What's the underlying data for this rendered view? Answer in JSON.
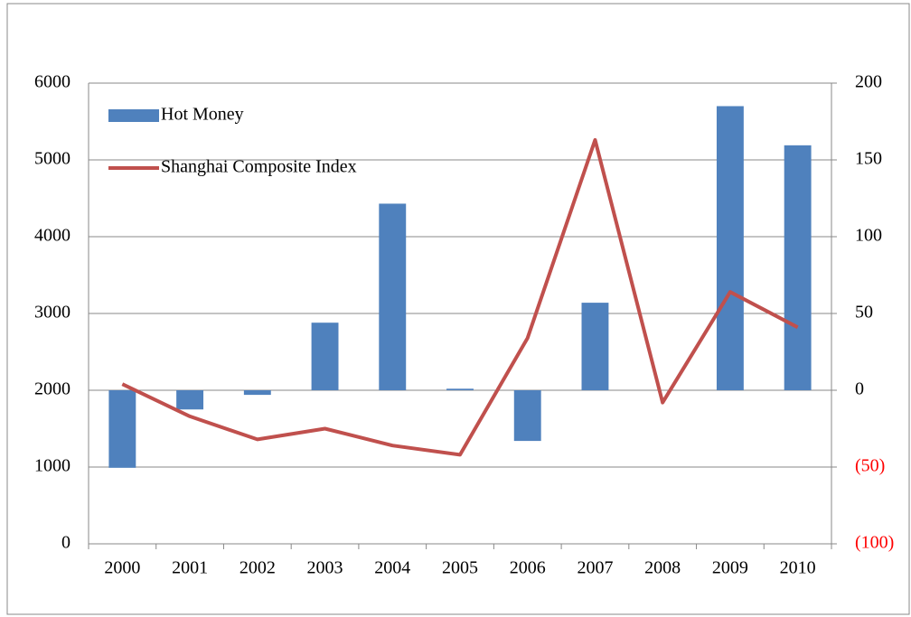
{
  "chart_data": {
    "type": "bar_line",
    "categories": [
      "2000",
      "2001",
      "2002",
      "2003",
      "2004",
      "2005",
      "2006",
      "2007",
      "2008",
      "2009",
      "2010"
    ],
    "series": [
      {
        "name": "Hot Money",
        "type": "bar",
        "color": "#4f81bd",
        "values": [
          990,
          1750,
          1940,
          2880,
          4430,
          2020,
          1340,
          3140,
          2000,
          5700,
          5190
        ]
      },
      {
        "name": "Shanghai Composite Index",
        "type": "line",
        "axis": "y2",
        "color": "#c0504d",
        "values": [
          4,
          -17,
          -32,
          -25,
          -36,
          -42,
          34,
          163,
          -8,
          64,
          41
        ]
      }
    ],
    "ylim": [
      0,
      6000
    ],
    "yticks": [
      0,
      1000,
      2000,
      3000,
      4000,
      5000,
      6000
    ],
    "y2lim": [
      -100,
      200
    ],
    "y2ticks": [
      {
        "value": -100,
        "label": "(100)"
      },
      {
        "value": -50,
        "label": "(50)"
      },
      0,
      50,
      100,
      150,
      200
    ],
    "y2_negative_color": "#ff0000",
    "grid": true,
    "legend": "top-left"
  }
}
